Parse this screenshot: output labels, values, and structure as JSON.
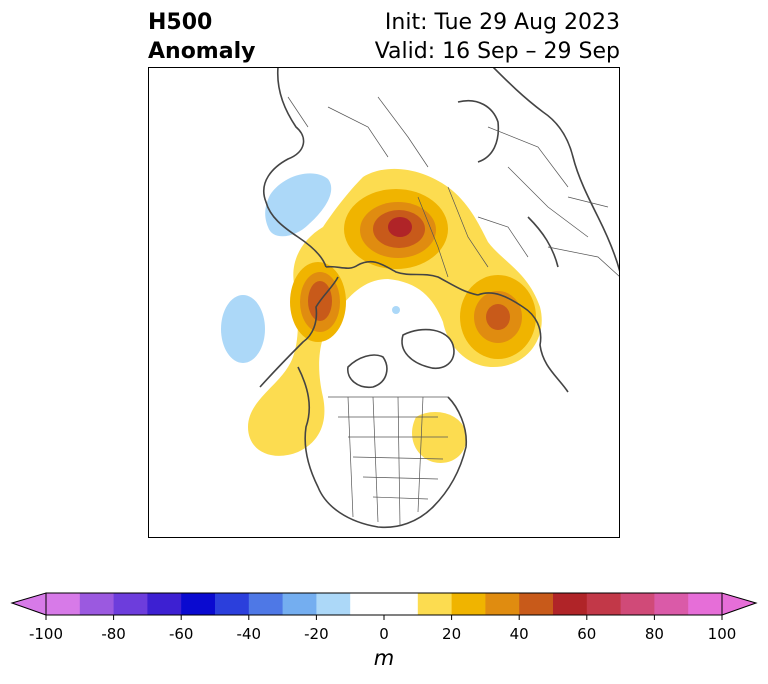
{
  "title": {
    "left_line1": "H500",
    "left_line2": "Anomaly",
    "right_line1": "Init: Tue 29 Aug 2023",
    "right_line2": "Valid: 16 Sep – 29 Sep"
  },
  "map": {
    "projection": "north-polar-stereographic",
    "field": "500 hPa geopotential height anomaly",
    "anomaly_regions": [
      {
        "name": "siberia-ridge",
        "peak_value": 60
      },
      {
        "name": "alaska-bering-ridge",
        "peak_value": 50
      },
      {
        "name": "scandinavia-ridge",
        "peak_value": 40
      },
      {
        "name": "northeast-canada-ridge",
        "peak_value": 20
      },
      {
        "name": "north-pacific-trough",
        "peak_value": -20
      },
      {
        "name": "east-asia-trough",
        "peak_value": -20
      },
      {
        "name": "arctic-trough",
        "peak_value": -20
      }
    ]
  },
  "colorbar": {
    "ticks": [
      "-100",
      "-80",
      "-60",
      "-40",
      "-20",
      "0",
      "20",
      "40",
      "60",
      "80",
      "100"
    ],
    "unit": "m",
    "bins": [
      {
        "from": -100,
        "to": -90,
        "color": "#d77ae8"
      },
      {
        "from": -90,
        "to": -80,
        "color": "#9b59e0"
      },
      {
        "from": -80,
        "to": -70,
        "color": "#6d3ddc"
      },
      {
        "from": -70,
        "to": -60,
        "color": "#3d20d2"
      },
      {
        "from": -60,
        "to": -50,
        "color": "#0a0ad0"
      },
      {
        "from": -50,
        "to": -40,
        "color": "#2b3fdc"
      },
      {
        "from": -40,
        "to": -30,
        "color": "#4e78e6"
      },
      {
        "from": -30,
        "to": -20,
        "color": "#74aef0"
      },
      {
        "from": -20,
        "to": -10,
        "color": "#acd8f8"
      },
      {
        "from": -10,
        "to": 0,
        "color": "#ffffff"
      },
      {
        "from": 0,
        "to": 10,
        "color": "#ffffff"
      },
      {
        "from": 10,
        "to": 20,
        "color": "#fcdc50"
      },
      {
        "from": 20,
        "to": 30,
        "color": "#f0b400"
      },
      {
        "from": 30,
        "to": 40,
        "color": "#e08c10"
      },
      {
        "from": 40,
        "to": 50,
        "color": "#c85a1a"
      },
      {
        "from": 50,
        "to": 60,
        "color": "#b02428"
      },
      {
        "from": 60,
        "to": 70,
        "color": "#c23848"
      },
      {
        "from": 70,
        "to": 80,
        "color": "#d04a78"
      },
      {
        "from": 80,
        "to": 90,
        "color": "#da5aa8"
      },
      {
        "from": 90,
        "to": 100,
        "color": "#e66ed8"
      }
    ],
    "extend_low_color": "#d77ae8",
    "extend_high_color": "#e66ed8"
  }
}
